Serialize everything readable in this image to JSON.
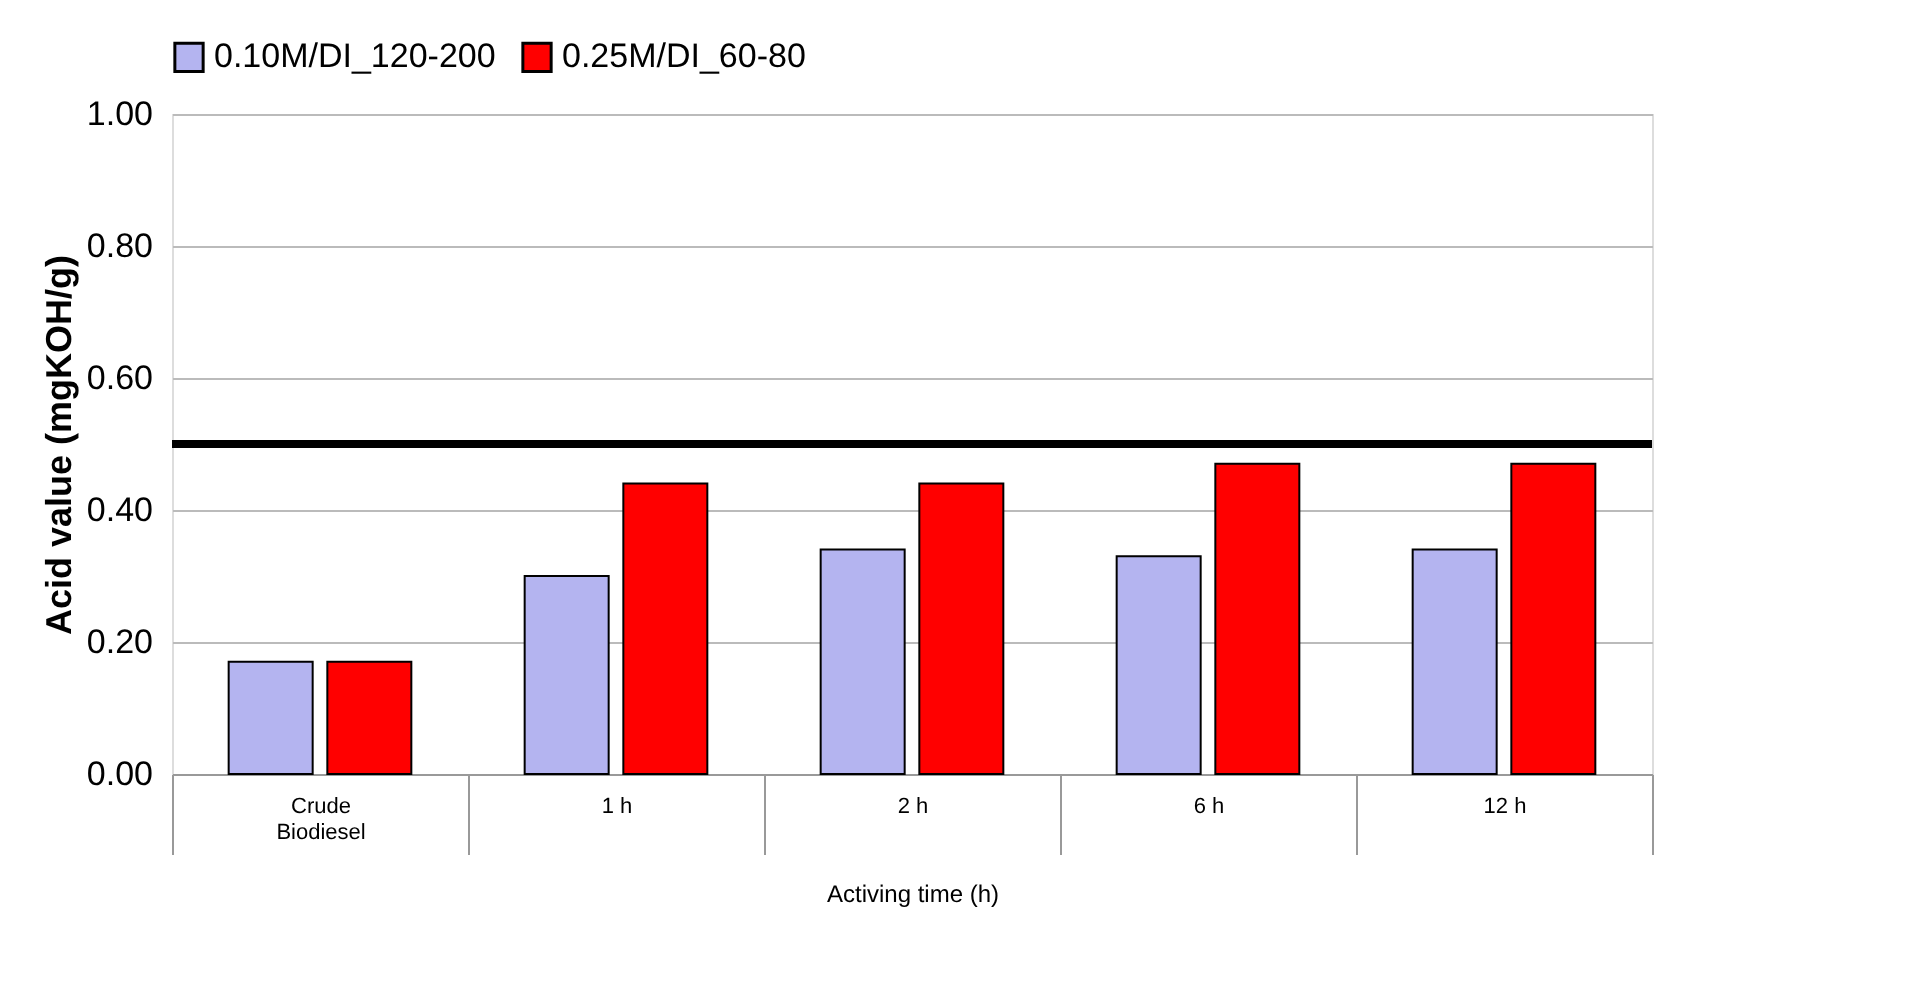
{
  "chart_data": {
    "type": "bar",
    "ylabel": "Acid value (mgKOH/g)",
    "xlabel": "Activing time (h)",
    "categories": [
      "Crude Biodiesel",
      "1 h",
      "2 h",
      "6 h",
      "12 h"
    ],
    "series": [
      {
        "name": "0.10M/DI_120-200",
        "color": "#b4b4f0",
        "values": [
          0.17,
          0.3,
          0.34,
          0.33,
          0.34
        ]
      },
      {
        "name": "0.25M/DI_60-80",
        "color": "#ff0000",
        "values": [
          0.17,
          0.44,
          0.44,
          0.47,
          0.47
        ]
      }
    ],
    "ylim": [
      0,
      1
    ],
    "yticks": [
      {
        "value": 0,
        "label": "0.00"
      },
      {
        "value": 0.2,
        "label": "0.20"
      },
      {
        "value": 0.4,
        "label": "0.40"
      },
      {
        "value": 0.6,
        "label": "0.60"
      },
      {
        "value": 0.8,
        "label": "0.80"
      },
      {
        "value": 1,
        "label": "1.00"
      }
    ],
    "ref_lines": [
      {
        "axis": "y",
        "value": 0.5,
        "color": "#000000"
      }
    ],
    "grid": "y",
    "legend": "top"
  }
}
